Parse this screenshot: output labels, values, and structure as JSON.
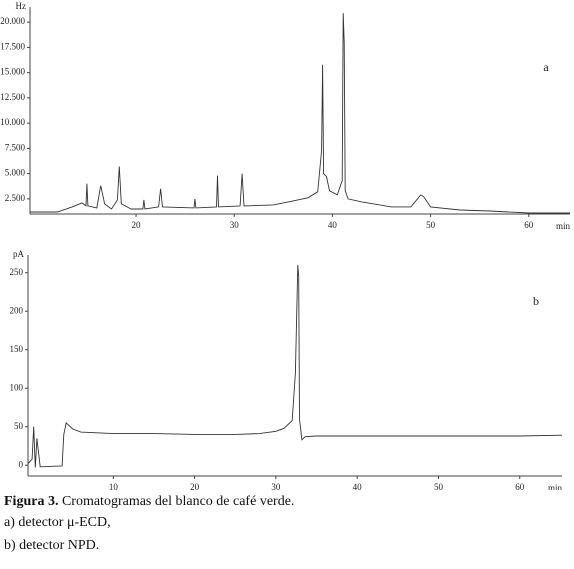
{
  "chart_data": [
    {
      "type": "line",
      "y_label": "Hz",
      "x_label": "min",
      "annotation": "a",
      "color": "#333333",
      "xlim": [
        9.2,
        64.2
      ],
      "ylim": [
        1000,
        21500
      ],
      "xticks": [
        20,
        30,
        40,
        50,
        60
      ],
      "yticks": [
        {
          "value": 2500,
          "label": "2.500"
        },
        {
          "value": 5000,
          "label": "5.000"
        },
        {
          "value": 7500,
          "label": "7.500"
        },
        {
          "value": 10000,
          "label": "10.000"
        },
        {
          "value": 12500,
          "label": "12.500"
        },
        {
          "value": 15000,
          "label": "15.000"
        },
        {
          "value": 17500,
          "label": "17.500"
        },
        {
          "value": 20000,
          "label": "20.000"
        }
      ],
      "x": [
        9.2,
        12,
        13.5,
        14.5,
        14.9,
        15,
        15.1,
        16,
        16.4,
        16.6,
        16.8,
        17.5,
        18.1,
        18.3,
        18.5,
        19.5,
        20.7,
        20.8,
        20.9,
        22.3,
        22.5,
        22.7,
        25.9,
        26,
        26.1,
        28.2,
        28.3,
        28.4,
        30.6,
        30.8,
        31,
        34,
        36,
        37.5,
        38.5,
        38.9,
        39,
        39.1,
        39.4,
        39.7,
        40.5,
        41,
        41.1,
        41.2,
        41.3,
        41.6,
        43,
        46,
        48,
        49,
        49.3,
        50,
        53,
        56,
        60,
        64.2
      ],
      "values": [
        1200,
        1200,
        1700,
        2100,
        1800,
        4000,
        1800,
        1600,
        3800,
        2900,
        2000,
        1500,
        2400,
        5700,
        2000,
        1500,
        1500,
        2400,
        1500,
        1700,
        3500,
        1700,
        1600,
        2500,
        1600,
        1700,
        4800,
        1700,
        1800,
        5000,
        1800,
        1900,
        2300,
        2600,
        3200,
        7300,
        15800,
        5000,
        4700,
        3300,
        2900,
        4300,
        20900,
        18000,
        3300,
        2500,
        2200,
        1700,
        1700,
        2900,
        2700,
        1700,
        1400,
        1300,
        1100,
        1100
      ]
    },
    {
      "type": "line",
      "y_label": "pA",
      "x_label": "min",
      "annotation": "b",
      "color": "#333333",
      "xlim": [
        -0.5,
        65.2
      ],
      "ylim": [
        -14,
        273
      ],
      "xticks": [
        10,
        20,
        30,
        40,
        50,
        60
      ],
      "yticks": [
        0,
        50,
        100,
        150,
        200,
        250
      ],
      "x": [
        -0.5,
        0,
        0.2,
        0.4,
        0.6,
        1,
        3.7,
        3.9,
        4.2,
        5,
        6,
        10,
        15,
        20,
        25,
        28,
        30,
        31,
        32,
        32.4,
        32.7,
        32.8,
        32.9,
        33.2,
        33.6,
        35,
        40,
        50,
        60,
        65.2
      ],
      "values": [
        2,
        8,
        50,
        -3,
        35,
        -2,
        -1,
        40,
        55,
        47,
        43,
        41,
        41,
        40,
        40,
        41,
        44,
        48,
        58,
        120,
        260,
        245,
        60,
        33,
        37,
        38,
        38,
        38,
        38,
        39
      ]
    }
  ],
  "caption": {
    "label": "Figura 3.",
    "text": "Cromatogramas del blanco de café verde.",
    "lines": [
      "a) detector μ-ECD,",
      "b) detector NPD."
    ]
  }
}
